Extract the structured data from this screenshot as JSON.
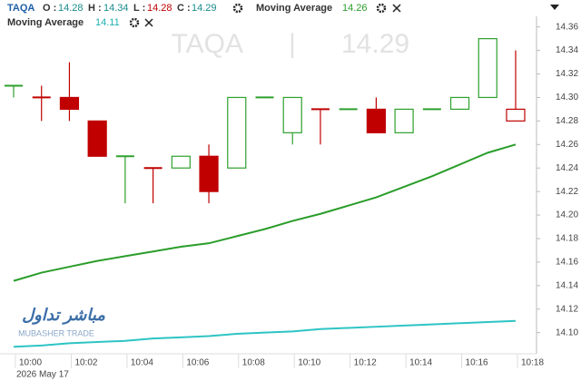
{
  "chart_data": {
    "type": "candlestick",
    "symbol": "TAQA",
    "date": "2026 May 17",
    "logo": {
      "arabic": "مباشر تداول",
      "latin": "MUBASHER TRADE"
    },
    "ohlc_labels": [
      "O :",
      "H :",
      "L :",
      "C :"
    ],
    "categories": [
      "10:00",
      null,
      "10:02",
      null,
      "10:04",
      null,
      "10:06",
      null,
      "10:08",
      null,
      "10:10",
      null,
      "10:12",
      null,
      "10:14",
      null,
      "10:16",
      null,
      "10:18"
    ],
    "open": [
      14.31,
      14.3,
      14.3,
      14.28,
      14.25,
      14.24,
      14.24,
      14.25,
      14.24,
      14.3,
      14.27,
      14.29,
      14.29,
      14.29,
      14.27,
      14.29,
      14.29,
      14.3,
      14.28
    ],
    "high": [
      14.31,
      14.31,
      14.33,
      14.28,
      14.25,
      14.24,
      14.25,
      14.26,
      14.3,
      14.3,
      14.3,
      14.29,
      14.29,
      14.3,
      14.29,
      14.29,
      14.3,
      14.35,
      14.34
    ],
    "low": [
      14.3,
      14.28,
      14.28,
      14.25,
      14.21,
      14.21,
      14.24,
      14.21,
      14.24,
      14.3,
      14.26,
      14.26,
      14.29,
      14.27,
      14.27,
      14.29,
      14.29,
      14.3,
      14.28
    ],
    "close": [
      14.31,
      14.3,
      14.29,
      14.25,
      14.25,
      14.24,
      14.25,
      14.22,
      14.3,
      14.3,
      14.3,
      14.29,
      14.29,
      14.27,
      14.29,
      14.29,
      14.3,
      14.35,
      14.29
    ],
    "up_color": "#2ea02e",
    "down_color": "#c00000",
    "series": [
      {
        "name": "Moving Average",
        "color": "#2a9d2a",
        "values": [
          14.144,
          14.151,
          14.156,
          14.161,
          14.165,
          14.169,
          14.173,
          14.176,
          14.182,
          14.188,
          14.195,
          14.201,
          14.208,
          14.215,
          14.224,
          14.233,
          14.243,
          14.253,
          14.26
        ]
      },
      {
        "name": "Moving Average",
        "color": "#2ec4c4",
        "values": [
          14.088,
          14.089,
          14.091,
          14.092,
          14.093,
          14.095,
          14.096,
          14.097,
          14.099,
          14.1,
          14.101,
          14.103,
          14.104,
          14.105,
          14.106,
          14.107,
          14.108,
          14.109,
          14.11
        ]
      }
    ],
    "ylim": [
      14.082,
      14.369
    ],
    "yticks": [
      {
        "value": 14.1,
        "label": "14.10"
      },
      14.12,
      14.14,
      14.16,
      14.18,
      {
        "value": 14.2,
        "label": "14.20"
      },
      14.22,
      14.24,
      14.26,
      14.28,
      {
        "value": 14.3,
        "label": "14.30"
      },
      14.32,
      14.34,
      14.36
    ]
  }
}
